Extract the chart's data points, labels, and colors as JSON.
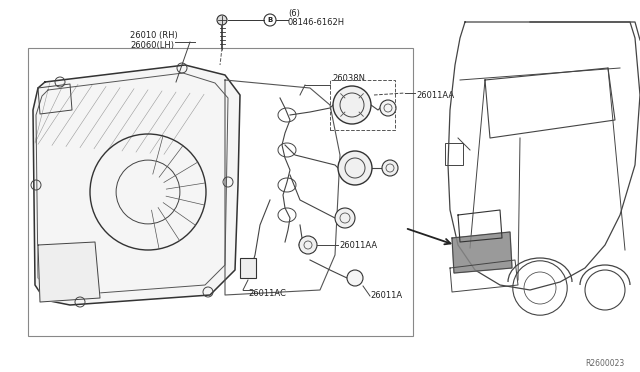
{
  "bg_color": "#ffffff",
  "fig_width": 6.4,
  "fig_height": 3.72,
  "dpi": 100,
  "watermark": "R2600023",
  "parts": {
    "bolt_label_line1": "08146-6162H",
    "bolt_label_line2": "(6)",
    "bolt_circle_label": "B",
    "part_26010": "26010 (RH)",
    "part_26060": "26060(LH)",
    "part_2603BN": "26038N",
    "part_26011AA_top": "26011AA",
    "part_26011AC": "26011AC",
    "part_26011AA_mid": "26011AA",
    "part_26011A": "26011A"
  },
  "line_color": "#333333",
  "text_color": "#222222"
}
